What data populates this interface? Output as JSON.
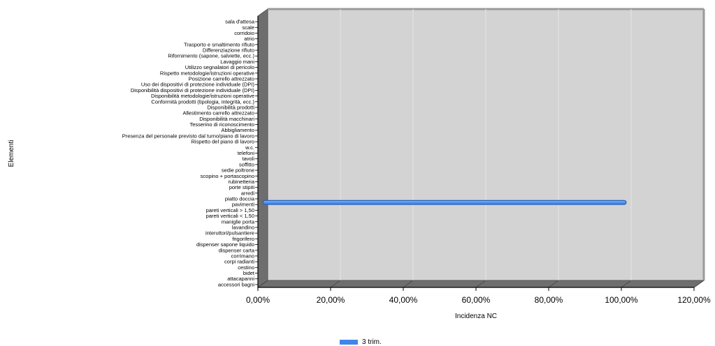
{
  "chart_data": {
    "type": "bar",
    "orientation": "horizontal",
    "three_d": true,
    "xlabel": "Incidenza NC",
    "ylabel": "Elementi",
    "xlim": [
      0,
      1.2
    ],
    "xticks": [
      "0,00%",
      "20,00%",
      "40,00%",
      "60,00%",
      "80,00%",
      "100,00%",
      "120,00%"
    ],
    "categories": [
      "sala d'attesa",
      "scale",
      "corridoio",
      "atrio",
      "Trasporto e smaltimento rifiuto",
      "Differenziazione rifiuto",
      "Rifornimento (sapone, salviette, ecc.)",
      "Lavaggio mani",
      "Utilizzo segnalatori di pericolo",
      "Rispetto metodologie/istruzioni operative",
      "Posizione carrello attrezzato",
      "Uso dei dispositivi di protezione individuale (DPI)",
      "Disponibilità dispositivi di protezione individuale (DPI)",
      "Disponibilità metodologie/istruzioni operative",
      "Conformità prodotti (tipologia, integrità, ecc.)",
      "Disponibilità prodotti",
      "Allestimento carrello attrezzato",
      "Disponibilità macchinari",
      "Tesserino di riconoscimento",
      "Abbigliamento",
      "Presenza del personale previsto dal turno/piano di lavoro",
      "Rispetto del piano di lavoro",
      "w.c.",
      "telefoni",
      "tavoli",
      "soffitto",
      "sedie poltrone",
      "scopino + portascopino",
      "rubinetteria",
      "porte stipiti",
      "arredi",
      "piatto doccia",
      "pavimenti",
      "pareti verticali > 1,50",
      "pareti verticali < 1,50",
      "maniglie porta",
      "lavandino",
      "interuttori/pulsantiere",
      "frigorifero",
      "dispenser sapone liquido",
      "dispenser carta",
      "corrimano",
      "corpi radianti",
      "cestino",
      "bidet",
      "attacapanni",
      "accessori bagni"
    ],
    "series": [
      {
        "name": "3 trim.",
        "color": "#3f86ea",
        "values": [
          0,
          0,
          0,
          0,
          0,
          0,
          0,
          0,
          0,
          0,
          0,
          0,
          0,
          0,
          0,
          0,
          0,
          0,
          0,
          0,
          0,
          0,
          0,
          0,
          0,
          0,
          0,
          0,
          0,
          0,
          0,
          0,
          1.0,
          0,
          0,
          0,
          0,
          0,
          0,
          0,
          0,
          0,
          0,
          0,
          0,
          0,
          0
        ]
      }
    ],
    "grid": true,
    "legend_position": "bottom-center"
  }
}
